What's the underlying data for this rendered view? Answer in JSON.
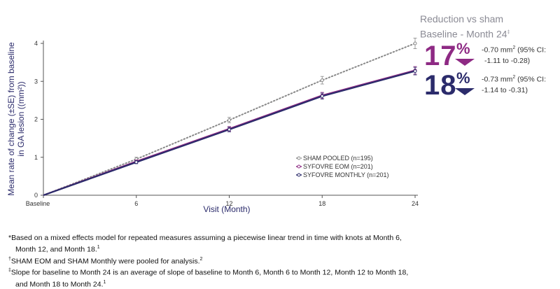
{
  "chart_data": {
    "type": "line",
    "title": "",
    "xlabel": "Visit (Month)",
    "ylabel": "Mean rate of change (±SE) from baseline in GA lesion (mm²)",
    "x_ticks": [
      "Baseline",
      "6",
      "12",
      "18",
      "24"
    ],
    "x": [
      0,
      6,
      12,
      18,
      24
    ],
    "ylim": [
      0,
      4
    ],
    "y_ticks": [
      0,
      1,
      2,
      3,
      4
    ],
    "legend_position": "center-right",
    "series": [
      {
        "name": "SHAM POOLED (n=195)",
        "values": [
          0,
          0.95,
          1.98,
          3.03,
          4.0
        ],
        "se": [
          0,
          0.05,
          0.07,
          0.1,
          0.14
        ],
        "style": "dotted",
        "color": "#888888"
      },
      {
        "name": "SYFOVRE EOM (n=201)",
        "values": [
          0,
          0.89,
          1.75,
          2.63,
          3.29
        ],
        "se": [
          0,
          0.04,
          0.06,
          0.08,
          0.1
        ],
        "style": "solid",
        "color": "#8e2a84"
      },
      {
        "name": "SYFOVRE MONTHLY (n=201)",
        "values": [
          0,
          0.87,
          1.73,
          2.61,
          3.27
        ],
        "se": [
          0,
          0.04,
          0.06,
          0.08,
          0.1
        ],
        "style": "solid",
        "color": "#2b2b6b"
      }
    ]
  },
  "panel": {
    "title_line1": "Reduction vs sham",
    "title_line2": "Baseline - Month 24",
    "title_sup": "‡",
    "eom": {
      "value": "17",
      "pct": "%",
      "ci_line1": "-0.70 mm",
      "ci_sup": "2",
      "ci_line1_rest": " (95% CI:",
      "ci_line2": "-1.11 to -0.28)",
      "color": "#8e2a84"
    },
    "monthly": {
      "value": "18",
      "pct": "%",
      "ci_line1": "-0.73 mm",
      "ci_sup": "2",
      "ci_line1_rest": " (95% CI:",
      "ci_line2": "-1.14 to -0.31)",
      "color": "#2b2b6b"
    }
  },
  "footnotes": {
    "f1": "*Based on a mixed effects model for repeated measures assuming a piecewise linear trend in time with knots at Month 6,",
    "f1b": "Month 12, and Month 18.",
    "f1b_sup": "1",
    "f2_mark": "†",
    "f2": "SHAM EOM and SHAM Monthly were pooled for analysis.",
    "f2_sup": "2",
    "f3_mark": "‡",
    "f3": "Slope for baseline to Month 24 is an average of slope of baseline to Month 6, Month 6 to Month 12, Month 12 to Month 18,",
    "f3b": "and Month 18 to Month 24.",
    "f3b_sup": "1"
  }
}
